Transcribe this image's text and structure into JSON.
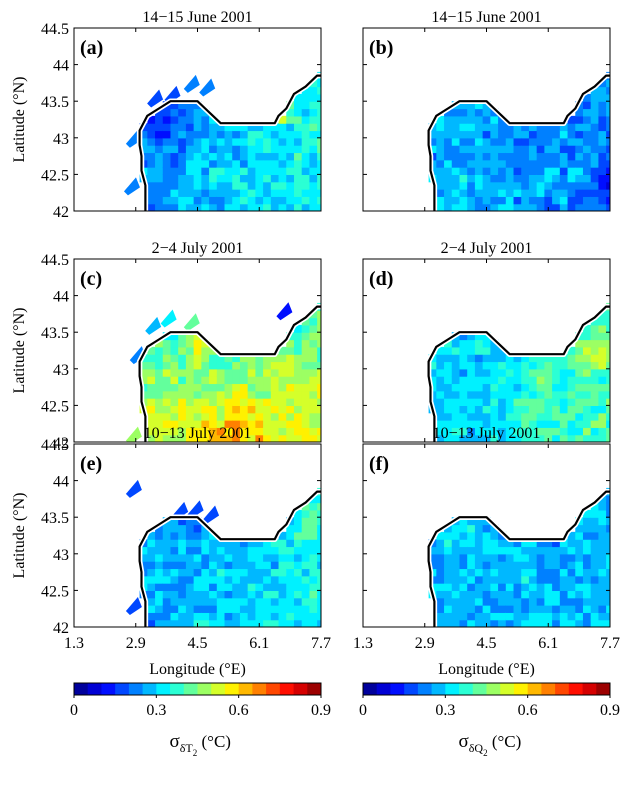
{
  "chart_data": {
    "type": "heatmap",
    "layout": "3 rows x 2 columns of map panels with two horizontal colorbars",
    "x_axis": {
      "label": "Longitude (°E)",
      "range": [
        1.3,
        7.7
      ],
      "ticks": [
        1.3,
        2.9,
        4.5,
        6.1,
        7.7
      ],
      "tick_labels": [
        "1.3",
        "2.9",
        "4.5",
        "6.1",
        "7.7"
      ]
    },
    "y_axis": {
      "label": "Latitude (°N)",
      "range": [
        42,
        44.5
      ],
      "ticks": [
        42,
        42.5,
        43,
        43.5,
        44,
        44.5
      ],
      "tick_labels": [
        "42",
        "42.5",
        "43",
        "43.5",
        "44",
        "44.5"
      ]
    },
    "coastline": [
      [
        3.15,
        42.0
      ],
      [
        3.15,
        42.35
      ],
      [
        3.05,
        42.55
      ],
      [
        3.05,
        42.75
      ],
      [
        3.0,
        42.9
      ],
      [
        3.0,
        43.1
      ],
      [
        3.2,
        43.3
      ],
      [
        3.5,
        43.4
      ],
      [
        3.8,
        43.5
      ],
      [
        4.2,
        43.5
      ],
      [
        4.5,
        43.5
      ],
      [
        4.7,
        43.4
      ],
      [
        4.9,
        43.3
      ],
      [
        5.1,
        43.2
      ],
      [
        5.5,
        43.2
      ],
      [
        6.0,
        43.2
      ],
      [
        6.5,
        43.2
      ],
      [
        6.6,
        43.3
      ],
      [
        6.8,
        43.4
      ],
      [
        7.0,
        43.6
      ],
      [
        7.3,
        43.7
      ],
      [
        7.5,
        43.8
      ],
      [
        7.6,
        43.85
      ],
      [
        7.7,
        43.85
      ]
    ],
    "panels": [
      {
        "label": "(a)",
        "title": "14−15 June 2001",
        "variable": "sigma_dT",
        "period": "14-15 June 2001",
        "field": {
          "base": 0.3,
          "east_gradient": 0.05,
          "south_gradient": 0.0,
          "noise": 0.05,
          "hotspots": [
            {
              "lon": 6.75,
              "lat": 43.25,
              "amp": 0.25,
              "r": 0.12
            }
          ],
          "coldspots": [
            {
              "lon": 3.7,
              "lat": 43.25,
              "amp": 0.15,
              "r": 0.5
            }
          ],
          "offshore_points": [
            [
              2.75,
              42.35,
              0.2
            ],
            [
              3.35,
              43.55,
              0.15
            ],
            [
              3.8,
              43.6,
              0.16
            ],
            [
              4.3,
              43.75,
              0.2
            ],
            [
              4.7,
              43.7,
              0.22
            ],
            [
              2.8,
              43.0,
              0.2
            ]
          ]
        }
      },
      {
        "label": "(b)",
        "title": "14−15 June 2001",
        "variable": "sigma_dQ",
        "period": "14-15 June 2001",
        "field": {
          "base": 0.25,
          "east_gradient": -0.03,
          "south_gradient": 0.0,
          "noise": 0.05,
          "hotspots": [],
          "coldspots": [
            {
              "lon": 7.6,
              "lat": 42.4,
              "amp": 0.1,
              "r": 0.4
            }
          ],
          "offshore_points": []
        }
      },
      {
        "label": "(c)",
        "title": "2−4 July 2001",
        "variable": "sigma_dT",
        "period": "2-4 July 2001",
        "field": {
          "base": 0.45,
          "east_gradient": 0.02,
          "south_gradient": 0.1,
          "noise": 0.05,
          "hotspots": [
            {
              "lon": 4.6,
              "lat": 43.3,
              "amp": 0.12,
              "r": 0.25
            },
            {
              "lon": 5.5,
              "lat": 42.15,
              "amp": 0.12,
              "r": 0.6
            },
            {
              "lon": 6.5,
              "lat": 43.1,
              "amp": 0.1,
              "r": 0.3
            }
          ],
          "coldspots": [],
          "offshore_points": [
            [
              2.9,
              43.2,
              0.2
            ],
            [
              3.3,
              43.6,
              0.25
            ],
            [
              3.7,
              43.7,
              0.3
            ],
            [
              4.3,
              43.65,
              0.4
            ],
            [
              6.7,
              43.8,
              0.12
            ],
            [
              2.8,
              42.1,
              0.45
            ]
          ]
        }
      },
      {
        "label": "(d)",
        "title": "2−4 July 2001",
        "variable": "sigma_dQ",
        "period": "2-4 July 2001",
        "field": {
          "base": 0.35,
          "east_gradient": 0.06,
          "south_gradient": 0.0,
          "noise": 0.05,
          "hotspots": [
            {
              "lon": 5.9,
              "lat": 42.8,
              "amp": 0.12,
              "r": 0.3
            },
            {
              "lon": 7.3,
              "lat": 43.2,
              "amp": 0.08,
              "r": 0.4
            }
          ],
          "coldspots": [],
          "offshore_points": []
        }
      },
      {
        "label": "(e)",
        "title": "10−13 July 2001",
        "variable": "sigma_dT",
        "period": "10-13 July 2001",
        "field": {
          "base": 0.3,
          "east_gradient": 0.04,
          "south_gradient": 0.0,
          "noise": 0.05,
          "hotspots": [
            {
              "lon": 7.5,
              "lat": 43.5,
              "amp": 0.1,
              "r": 0.3
            }
          ],
          "coldspots": [
            {
              "lon": 4.4,
              "lat": 43.5,
              "amp": 0.1,
              "r": 0.3
            }
          ],
          "offshore_points": [
            [
              2.8,
              43.9,
              0.15
            ],
            [
              2.8,
              42.3,
              0.15
            ],
            [
              4.0,
              43.6,
              0.16
            ],
            [
              4.4,
              43.62,
              0.15
            ],
            [
              4.8,
              43.55,
              0.18
            ]
          ]
        }
      },
      {
        "label": "(f)",
        "title": "10−13 July 2001",
        "variable": "sigma_dQ",
        "period": "10-13 July 2001",
        "field": {
          "base": 0.28,
          "east_gradient": 0.0,
          "south_gradient": 0.0,
          "noise": 0.05,
          "hotspots": [],
          "coldspots": [],
          "offshore_points": []
        }
      }
    ],
    "colorbars": [
      {
        "name": "sigma_dT",
        "label_main": "σ",
        "label_sub": "δT",
        "label_sub2": "2",
        "label_unit": " (°C)",
        "range": [
          0,
          0.9
        ],
        "ticks": [
          0,
          0.3,
          0.6,
          0.9
        ],
        "tick_labels": [
          "0",
          "0.3",
          "0.6",
          "0.9"
        ]
      },
      {
        "name": "sigma_dQ",
        "label_main": "σ",
        "label_sub": "δQ",
        "label_sub2": "2",
        "label_unit": " (°C)",
        "range": [
          0,
          0.9
        ],
        "ticks": [
          0,
          0.3,
          0.6,
          0.9
        ],
        "tick_labels": [
          "0",
          "0.3",
          "0.6",
          "0.9"
        ]
      }
    ],
    "colormap": "jet",
    "colormap_levels": 18,
    "grid": false
  }
}
